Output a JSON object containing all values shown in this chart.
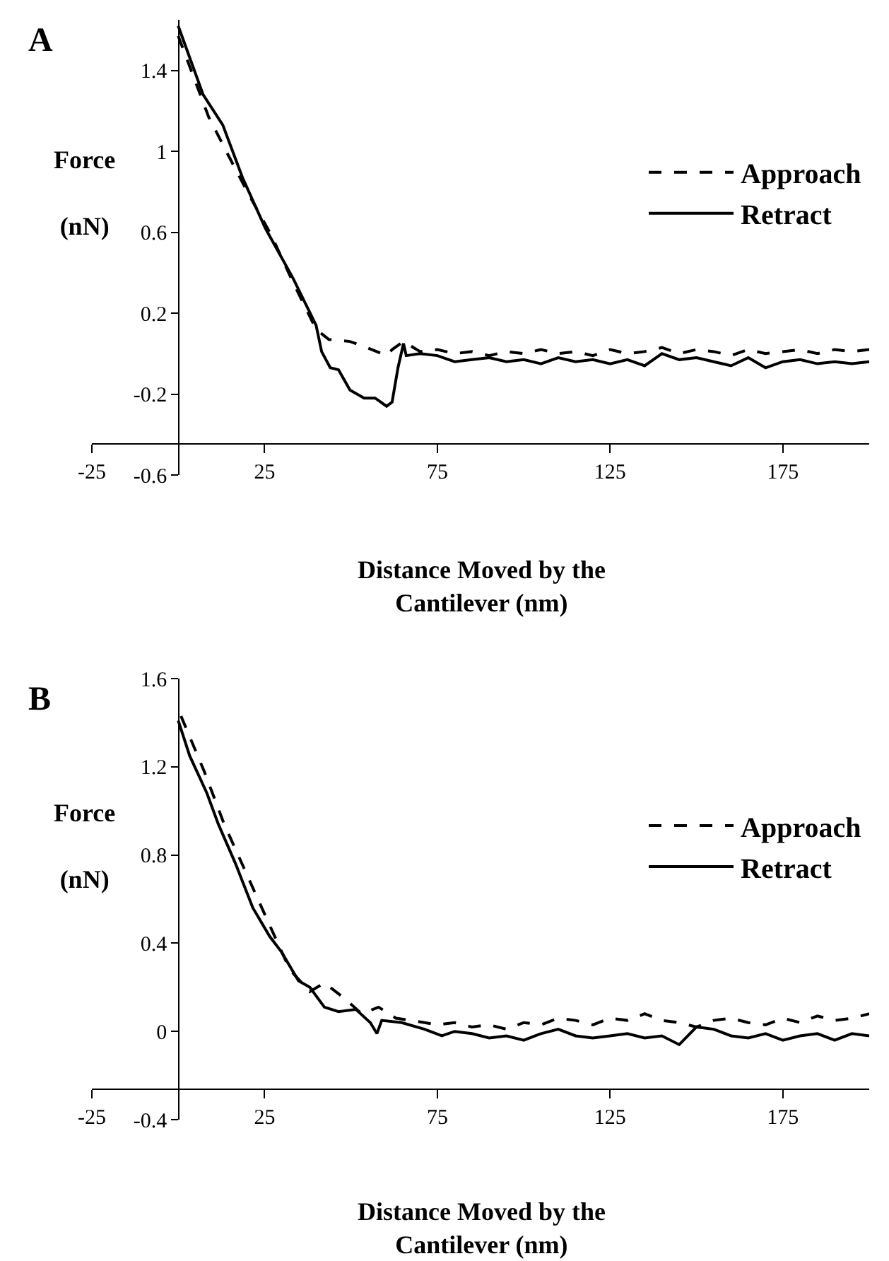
{
  "chart_data": [
    {
      "type": "line",
      "title": "A",
      "xlabel": "Distance Moved by the Cantilever (nm)",
      "ylabel": "Force (nN)",
      "xlim": [
        -25,
        200
      ],
      "xticks": [
        -25,
        25,
        75,
        125,
        175
      ],
      "ylim": [
        -0.6,
        1.65
      ],
      "yticks": [
        -0.6,
        -0.2,
        0.2,
        0.6,
        1,
        1.4
      ],
      "grid": false,
      "legend": "right",
      "marker": "none",
      "series": [
        {
          "name": "Approach",
          "color": "#000000",
          "line_style": "dashed",
          "x": [
            0,
            8.8,
            14.5,
            20.3,
            26.8,
            33.3,
            39.9,
            43.6,
            49.7,
            54.6,
            60.3,
            61.9,
            65.2,
            70,
            75,
            80,
            85,
            90,
            95,
            100,
            105,
            110,
            115,
            120,
            125,
            130,
            135,
            140,
            145,
            150,
            155,
            160,
            165,
            170,
            175,
            180,
            185,
            190,
            195,
            200
          ],
          "values": [
            1.57,
            1.17,
            0.98,
            0.79,
            0.59,
            0.35,
            0.12,
            0.07,
            0.06,
            0.03,
            -0.01,
            0.02,
            0.06,
            0.01,
            0.02,
            0.0,
            0.01,
            -0.01,
            0.01,
            0.0,
            0.02,
            0.0,
            0.01,
            -0.01,
            0.02,
            0.0,
            0.01,
            0.03,
            0.0,
            0.02,
            0.01,
            -0.01,
            0.02,
            0.0,
            0.01,
            0.02,
            0.0,
            0.02,
            0.01,
            0.02
          ]
        },
        {
          "name": "Retract",
          "color": "#000000",
          "line_style": "solid",
          "x": [
            0,
            7.2,
            12.9,
            18.6,
            25.2,
            33.3,
            39.9,
            41.5,
            44,
            46.4,
            49.7,
            53.8,
            57,
            60.3,
            61.9,
            63.6,
            65.2,
            66,
            70,
            75,
            80,
            85,
            90,
            95,
            100,
            105,
            110,
            115,
            120,
            125,
            130,
            135,
            140,
            145,
            150,
            155,
            160,
            165,
            170,
            175,
            180,
            185,
            190,
            195,
            200
          ],
          "values": [
            1.62,
            1.28,
            1.13,
            0.87,
            0.62,
            0.37,
            0.14,
            0.01,
            -0.07,
            -0.08,
            -0.18,
            -0.22,
            -0.22,
            -0.26,
            -0.24,
            -0.07,
            0.05,
            -0.01,
            0.0,
            -0.01,
            -0.04,
            -0.03,
            -0.02,
            -0.04,
            -0.03,
            -0.05,
            -0.02,
            -0.04,
            -0.03,
            -0.05,
            -0.03,
            -0.06,
            0.0,
            -0.03,
            -0.02,
            -0.04,
            -0.06,
            -0.02,
            -0.07,
            -0.04,
            -0.03,
            -0.05,
            -0.04,
            -0.05,
            -0.04
          ]
        }
      ]
    },
    {
      "type": "line",
      "title": "B",
      "xlabel": "Distance Moved by the Cantilever (nm)",
      "ylabel": "Force (nN)",
      "xlim": [
        -25,
        200
      ],
      "xticks": [
        -25,
        25,
        75,
        125,
        175
      ],
      "ylim": [
        -0.4,
        1.6
      ],
      "yticks": [
        -0.4,
        0,
        0.4,
        0.8,
        1.2,
        1.6
      ],
      "grid": false,
      "legend": "right",
      "marker": "none",
      "series": [
        {
          "name": "Approach",
          "color": "#000000",
          "line_style": "dashed",
          "x": [
            0.8,
            7.5,
            13.3,
            19.9,
            26.5,
            32.3,
            38.1,
            42.3,
            48.1,
            53.1,
            58,
            63,
            71.3,
            75,
            80,
            85,
            90,
            95,
            100,
            105,
            110,
            115,
            120,
            125,
            130,
            135,
            140,
            145,
            150,
            155,
            160,
            165,
            170,
            175,
            180,
            185,
            190,
            195,
            200
          ],
          "values": [
            1.43,
            1.18,
            0.94,
            0.71,
            0.48,
            0.28,
            0.18,
            0.22,
            0.15,
            0.08,
            0.11,
            0.06,
            0.04,
            0.03,
            0.04,
            0.02,
            0.03,
            0.01,
            0.04,
            0.03,
            0.06,
            0.05,
            0.03,
            0.06,
            0.05,
            0.08,
            0.05,
            0.04,
            0.02,
            0.05,
            0.06,
            0.04,
            0.03,
            0.06,
            0.04,
            0.07,
            0.05,
            0.06,
            0.08
          ]
        },
        {
          "name": "Retract",
          "color": "#000000",
          "line_style": "solid",
          "x": [
            0,
            3.3,
            8.3,
            11.6,
            16.6,
            21.6,
            26.5,
            29.9,
            34.8,
            38.1,
            42.3,
            46.4,
            51.4,
            55.6,
            57.5,
            58.9,
            64.7,
            71.3,
            76.3,
            80,
            85,
            90,
            95,
            100,
            105,
            110,
            115,
            120,
            125,
            130,
            135,
            140,
            145,
            150,
            155,
            160,
            165,
            170,
            175,
            180,
            185,
            190,
            195,
            200
          ],
          "values": [
            1.41,
            1.25,
            1.08,
            0.94,
            0.76,
            0.56,
            0.43,
            0.36,
            0.23,
            0.2,
            0.11,
            0.09,
            0.1,
            0.04,
            -0.01,
            0.05,
            0.04,
            0.01,
            -0.02,
            0.0,
            -0.01,
            -0.03,
            -0.02,
            -0.04,
            -0.01,
            0.01,
            -0.02,
            -0.03,
            -0.02,
            -0.01,
            -0.03,
            -0.02,
            -0.06,
            0.02,
            0.01,
            -0.02,
            -0.03,
            -0.01,
            -0.04,
            -0.02,
            -0.01,
            -0.04,
            -0.01,
            -0.02
          ]
        }
      ]
    }
  ]
}
